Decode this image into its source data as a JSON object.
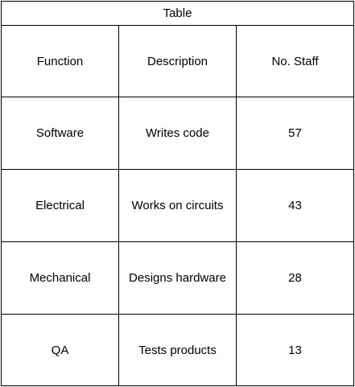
{
  "table": {
    "title": "Table",
    "columns": [
      "Function",
      "Description",
      "No. Staff"
    ],
    "rows": [
      [
        "Software",
        "Writes code",
        "57"
      ],
      [
        "Electrical",
        "Works on circuits",
        "43"
      ],
      [
        "Mechanical",
        "Designs hardware",
        "28"
      ],
      [
        "QA",
        "Tests products",
        "13"
      ]
    ]
  },
  "colors": {
    "border": "#000000",
    "background": "#ffffff",
    "text": "#000000"
  }
}
